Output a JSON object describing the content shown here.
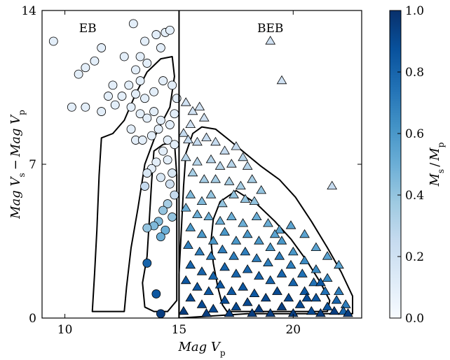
{
  "chart_data": {
    "type": "scatter",
    "xlabel": "Mag V_p",
    "ylabel": "Mag V_s − Mag V_p",
    "xlim": [
      9,
      23
    ],
    "ylim": [
      0,
      14
    ],
    "x_ticks": [
      "10",
      "15",
      "20"
    ],
    "y_ticks": [
      "0",
      "7",
      "14"
    ],
    "divider_x": 15,
    "regions": [
      {
        "label": "EB",
        "x": 11,
        "y": 13.2
      },
      {
        "label": "BEB",
        "x": 19,
        "y": 13.2
      }
    ],
    "colorbar": {
      "label": "M_s / M_p",
      "min": 0.0,
      "max": 1.0,
      "ticks": [
        "0.0",
        "0.2",
        "0.4",
        "0.6",
        "0.8",
        "1.0"
      ],
      "colormap": "Blues",
      "colors": [
        "#f7fbff",
        "#deebf7",
        "#c6dbef",
        "#9ecae1",
        "#6baed6",
        "#4292c6",
        "#2171b5",
        "#08519c",
        "#08306b"
      ]
    },
    "series": [
      {
        "marker": "circle",
        "points": [
          [
            9.5,
            12.6,
            0.1
          ],
          [
            10.6,
            11.1,
            0.1
          ],
          [
            10.9,
            11.4,
            0.1
          ],
          [
            11.3,
            11.7,
            0.1
          ],
          [
            11.6,
            12.3,
            0.1
          ],
          [
            12.1,
            10.6,
            0.1
          ],
          [
            11.9,
            10.1,
            0.1
          ],
          [
            10.3,
            9.6,
            0.1
          ],
          [
            10.9,
            9.6,
            0.1
          ],
          [
            11.6,
            9.4,
            0.1
          ],
          [
            12.2,
            9.7,
            0.1
          ],
          [
            12.6,
            11.9,
            0.1
          ],
          [
            13.0,
            13.4,
            0.1
          ],
          [
            13.5,
            12.6,
            0.1
          ],
          [
            13.3,
            11.9,
            0.1
          ],
          [
            13.1,
            11.3,
            0.1
          ],
          [
            13.3,
            10.8,
            0.1
          ],
          [
            13.6,
            11.6,
            0.1
          ],
          [
            14.0,
            12.9,
            0.1
          ],
          [
            14.4,
            13.0,
            0.1
          ],
          [
            14.2,
            12.3,
            0.1
          ],
          [
            14.6,
            13.1,
            0.1
          ],
          [
            12.8,
            10.6,
            0.1
          ],
          [
            12.5,
            10.1,
            0.1
          ],
          [
            12.9,
            9.6,
            0.1
          ],
          [
            13.3,
            9.3,
            0.1
          ],
          [
            13.6,
            9.1,
            0.1
          ],
          [
            13.9,
            9.4,
            0.1
          ],
          [
            14.2,
            9.0,
            0.1
          ],
          [
            14.6,
            8.8,
            0.1
          ],
          [
            14.8,
            9.3,
            0.1
          ],
          [
            14.9,
            10.0,
            0.1
          ],
          [
            14.7,
            10.6,
            0.1
          ],
          [
            14.3,
            10.8,
            0.1
          ],
          [
            13.9,
            10.3,
            0.1
          ],
          [
            13.5,
            10.0,
            0.1
          ],
          [
            13.1,
            10.2,
            0.1
          ],
          [
            12.9,
            8.6,
            0.1
          ],
          [
            13.1,
            8.1,
            0.1
          ],
          [
            13.4,
            8.1,
            0.1
          ],
          [
            13.8,
            8.3,
            0.1
          ],
          [
            14.1,
            8.6,
            0.1
          ],
          [
            14.5,
            8.1,
            0.1
          ],
          [
            14.8,
            7.9,
            0.1
          ],
          [
            14.3,
            7.6,
            0.1
          ],
          [
            14.0,
            7.1,
            0.1
          ],
          [
            13.8,
            6.8,
            0.1
          ],
          [
            14.5,
            7.2,
            0.1
          ],
          [
            14.7,
            6.6,
            0.15
          ],
          [
            14.2,
            6.4,
            0.15
          ],
          [
            13.6,
            6.6,
            0.15
          ],
          [
            13.5,
            6.0,
            0.25
          ],
          [
            14.6,
            6.1,
            0.2
          ],
          [
            14.8,
            5.6,
            0.25
          ],
          [
            14.5,
            5.2,
            0.35
          ],
          [
            14.3,
            4.9,
            0.4
          ],
          [
            14.7,
            4.6,
            0.4
          ],
          [
            14.1,
            4.4,
            0.45
          ],
          [
            13.9,
            4.2,
            0.45
          ],
          [
            14.4,
            4.0,
            0.5
          ],
          [
            13.6,
            4.1,
            0.4
          ],
          [
            14.2,
            3.7,
            0.5
          ],
          [
            13.6,
            2.5,
            0.8
          ],
          [
            14.0,
            1.1,
            0.85
          ],
          [
            14.2,
            0.2,
            0.95
          ]
        ]
      },
      {
        "marker": "triangle",
        "points": [
          [
            19.0,
            12.6,
            0.2
          ],
          [
            19.5,
            10.8,
            0.2
          ],
          [
            15.6,
            9.4,
            0.2
          ],
          [
            15.9,
            9.6,
            0.2
          ],
          [
            16.1,
            9.1,
            0.2
          ],
          [
            15.3,
            9.8,
            0.2
          ],
          [
            15.5,
            8.8,
            0.2
          ],
          [
            15.2,
            8.4,
            0.25
          ],
          [
            15.4,
            8.1,
            0.25
          ],
          [
            15.8,
            8.0,
            0.25
          ],
          [
            16.2,
            8.2,
            0.25
          ],
          [
            16.6,
            8.0,
            0.25
          ],
          [
            17.0,
            7.6,
            0.25
          ],
          [
            17.5,
            7.8,
            0.25
          ],
          [
            17.8,
            7.3,
            0.3
          ],
          [
            18.0,
            6.9,
            0.3
          ],
          [
            17.3,
            7.0,
            0.3
          ],
          [
            16.8,
            6.9,
            0.3
          ],
          [
            16.4,
            7.2,
            0.3
          ],
          [
            15.8,
            7.1,
            0.3
          ],
          [
            15.3,
            7.3,
            0.3
          ],
          [
            15.6,
            6.6,
            0.35
          ],
          [
            16.1,
            6.3,
            0.35
          ],
          [
            16.6,
            6.3,
            0.35
          ],
          [
            17.2,
            6.2,
            0.35
          ],
          [
            17.7,
            6.0,
            0.35
          ],
          [
            18.2,
            6.3,
            0.35
          ],
          [
            18.6,
            5.8,
            0.4
          ],
          [
            18.3,
            5.3,
            0.4
          ],
          [
            17.9,
            5.4,
            0.4
          ],
          [
            17.4,
            5.6,
            0.4
          ],
          [
            16.9,
            5.2,
            0.4
          ],
          [
            16.4,
            5.6,
            0.4
          ],
          [
            16.0,
            5.3,
            0.45
          ],
          [
            15.5,
            5.6,
            0.45
          ],
          [
            15.3,
            5.0,
            0.5
          ],
          [
            15.8,
            4.7,
            0.5
          ],
          [
            16.3,
            4.6,
            0.5
          ],
          [
            16.8,
            4.4,
            0.5
          ],
          [
            17.3,
            4.6,
            0.5
          ],
          [
            17.8,
            4.3,
            0.5
          ],
          [
            18.4,
            4.6,
            0.5
          ],
          [
            18.9,
            4.3,
            0.5
          ],
          [
            19.4,
            4.0,
            0.55
          ],
          [
            19.9,
            4.2,
            0.55
          ],
          [
            20.5,
            3.8,
            0.55
          ],
          [
            21.0,
            3.2,
            0.55
          ],
          [
            21.5,
            2.8,
            0.55
          ],
          [
            22.0,
            2.4,
            0.55
          ],
          [
            21.7,
            6.0,
            0.25
          ],
          [
            15.5,
            4.1,
            0.6
          ],
          [
            16.0,
            3.8,
            0.6
          ],
          [
            16.5,
            3.5,
            0.6
          ],
          [
            17.0,
            3.9,
            0.6
          ],
          [
            17.5,
            3.5,
            0.6
          ],
          [
            18.0,
            3.8,
            0.6
          ],
          [
            18.5,
            3.5,
            0.6
          ],
          [
            19.0,
            3.2,
            0.6
          ],
          [
            19.5,
            3.5,
            0.6
          ],
          [
            20.0,
            3.0,
            0.6
          ],
          [
            20.5,
            2.6,
            0.65
          ],
          [
            21.0,
            2.2,
            0.65
          ],
          [
            21.5,
            1.8,
            0.65
          ],
          [
            22.0,
            1.2,
            0.7
          ],
          [
            22.3,
            0.6,
            0.7
          ],
          [
            15.4,
            3.3,
            0.7
          ],
          [
            15.9,
            3.0,
            0.7
          ],
          [
            16.4,
            2.8,
            0.7
          ],
          [
            16.9,
            3.1,
            0.7
          ],
          [
            17.4,
            2.8,
            0.7
          ],
          [
            17.9,
            3.0,
            0.7
          ],
          [
            18.4,
            2.7,
            0.7
          ],
          [
            18.9,
            2.5,
            0.7
          ],
          [
            19.4,
            2.8,
            0.7
          ],
          [
            19.9,
            2.4,
            0.7
          ],
          [
            20.4,
            2.0,
            0.75
          ],
          [
            20.9,
            1.6,
            0.75
          ],
          [
            21.4,
            1.2,
            0.75
          ],
          [
            21.9,
            0.8,
            0.8
          ],
          [
            22.2,
            0.3,
            0.8
          ],
          [
            15.5,
            2.4,
            0.8
          ],
          [
            16.0,
            2.1,
            0.8
          ],
          [
            16.5,
            1.9,
            0.8
          ],
          [
            17.0,
            2.3,
            0.8
          ],
          [
            17.5,
            2.0,
            0.8
          ],
          [
            18.0,
            2.2,
            0.8
          ],
          [
            18.5,
            1.9,
            0.8
          ],
          [
            19.0,
            1.7,
            0.8
          ],
          [
            19.5,
            2.0,
            0.8
          ],
          [
            20.0,
            1.6,
            0.8
          ],
          [
            20.5,
            1.2,
            0.85
          ],
          [
            21.0,
            0.9,
            0.85
          ],
          [
            21.5,
            0.5,
            0.85
          ],
          [
            15.3,
            1.7,
            0.85
          ],
          [
            15.8,
            1.4,
            0.85
          ],
          [
            16.3,
            1.2,
            0.85
          ],
          [
            16.8,
            1.5,
            0.85
          ],
          [
            17.3,
            1.2,
            0.85
          ],
          [
            17.8,
            1.4,
            0.85
          ],
          [
            18.3,
            1.1,
            0.85
          ],
          [
            18.8,
            0.9,
            0.9
          ],
          [
            19.3,
            1.2,
            0.9
          ],
          [
            19.8,
            0.9,
            0.9
          ],
          [
            20.3,
            0.6,
            0.9
          ],
          [
            20.8,
            0.3,
            0.9
          ],
          [
            15.5,
            0.9,
            0.9
          ],
          [
            16.0,
            0.6,
            0.9
          ],
          [
            16.5,
            0.4,
            0.9
          ],
          [
            17.0,
            0.8,
            0.9
          ],
          [
            17.5,
            0.5,
            0.9
          ],
          [
            18.0,
            0.7,
            0.9
          ],
          [
            18.5,
            0.4,
            0.95
          ],
          [
            19.0,
            0.2,
            0.95
          ],
          [
            19.5,
            0.5,
            0.95
          ],
          [
            20.0,
            0.2,
            0.95
          ],
          [
            21.2,
            0.2,
            0.95
          ],
          [
            21.8,
            0.3,
            0.95
          ],
          [
            22.4,
            0.2,
            0.95
          ],
          [
            15.2,
            0.3,
            0.95
          ],
          [
            16.2,
            0.2,
            0.95
          ],
          [
            17.2,
            0.2,
            0.95
          ],
          [
            18.2,
            0.2,
            0.95
          ],
          [
            20.6,
            0.9,
            0.9
          ],
          [
            21.2,
            1.6,
            0.85
          ],
          [
            19.2,
            3.8,
            0.55
          ]
        ]
      }
    ],
    "contours": [
      [
        [
          11.2,
          0.3
        ],
        [
          11.3,
          2.0
        ],
        [
          11.4,
          4.0
        ],
        [
          11.5,
          6.5
        ],
        [
          11.6,
          8.2
        ],
        [
          12.1,
          8.4
        ],
        [
          12.6,
          9.0
        ],
        [
          13.1,
          10.2
        ],
        [
          13.6,
          11.2
        ],
        [
          14.2,
          11.8
        ],
        [
          14.7,
          11.9
        ],
        [
          14.8,
          11.0
        ],
        [
          14.6,
          9.6
        ],
        [
          14.0,
          8.4
        ],
        [
          13.5,
          7.0
        ],
        [
          13.2,
          5.0
        ],
        [
          12.9,
          3.2
        ],
        [
          12.7,
          1.4
        ],
        [
          12.6,
          0.3
        ],
        [
          11.2,
          0.3
        ]
      ],
      [
        [
          13.5,
          0.5
        ],
        [
          13.4,
          1.6
        ],
        [
          13.6,
          2.8
        ],
        [
          13.7,
          4.5
        ],
        [
          13.8,
          6.2
        ],
        [
          13.9,
          7.6
        ],
        [
          14.3,
          7.9
        ],
        [
          14.8,
          8.0
        ],
        [
          14.9,
          6.5
        ],
        [
          14.9,
          4.5
        ],
        [
          14.9,
          2.5
        ],
        [
          14.9,
          0.8
        ],
        [
          14.5,
          0.3
        ],
        [
          13.9,
          0.3
        ],
        [
          13.5,
          0.5
        ]
      ],
      [
        [
          15.0,
          0.0
        ],
        [
          15.0,
          2.0
        ],
        [
          15.1,
          4.0
        ],
        [
          15.2,
          6.0
        ],
        [
          15.3,
          7.5
        ],
        [
          15.6,
          8.4
        ],
        [
          16.0,
          8.7
        ],
        [
          16.6,
          8.6
        ],
        [
          17.2,
          8.1
        ],
        [
          17.9,
          7.5
        ],
        [
          18.6,
          6.9
        ],
        [
          19.4,
          6.3
        ],
        [
          20.1,
          5.5
        ],
        [
          20.8,
          4.4
        ],
        [
          21.5,
          3.2
        ],
        [
          22.1,
          2.1
        ],
        [
          22.6,
          1.0
        ],
        [
          22.6,
          0.2
        ],
        [
          21.0,
          0.2
        ],
        [
          18.0,
          0.2
        ],
        [
          15.0,
          0.0
        ]
      ],
      [
        [
          17.1,
          0.3
        ],
        [
          16.9,
          0.6
        ],
        [
          16.7,
          1.4
        ],
        [
          16.5,
          2.5
        ],
        [
          16.4,
          3.5
        ],
        [
          16.5,
          4.5
        ],
        [
          16.8,
          5.3
        ],
        [
          17.5,
          5.8
        ],
        [
          18.4,
          5.2
        ],
        [
          19.2,
          4.4
        ],
        [
          19.9,
          3.6
        ],
        [
          20.6,
          2.6
        ],
        [
          21.2,
          1.6
        ],
        [
          21.6,
          0.8
        ],
        [
          21.5,
          0.3
        ],
        [
          19.0,
          0.3
        ],
        [
          17.1,
          0.3
        ]
      ]
    ]
  }
}
